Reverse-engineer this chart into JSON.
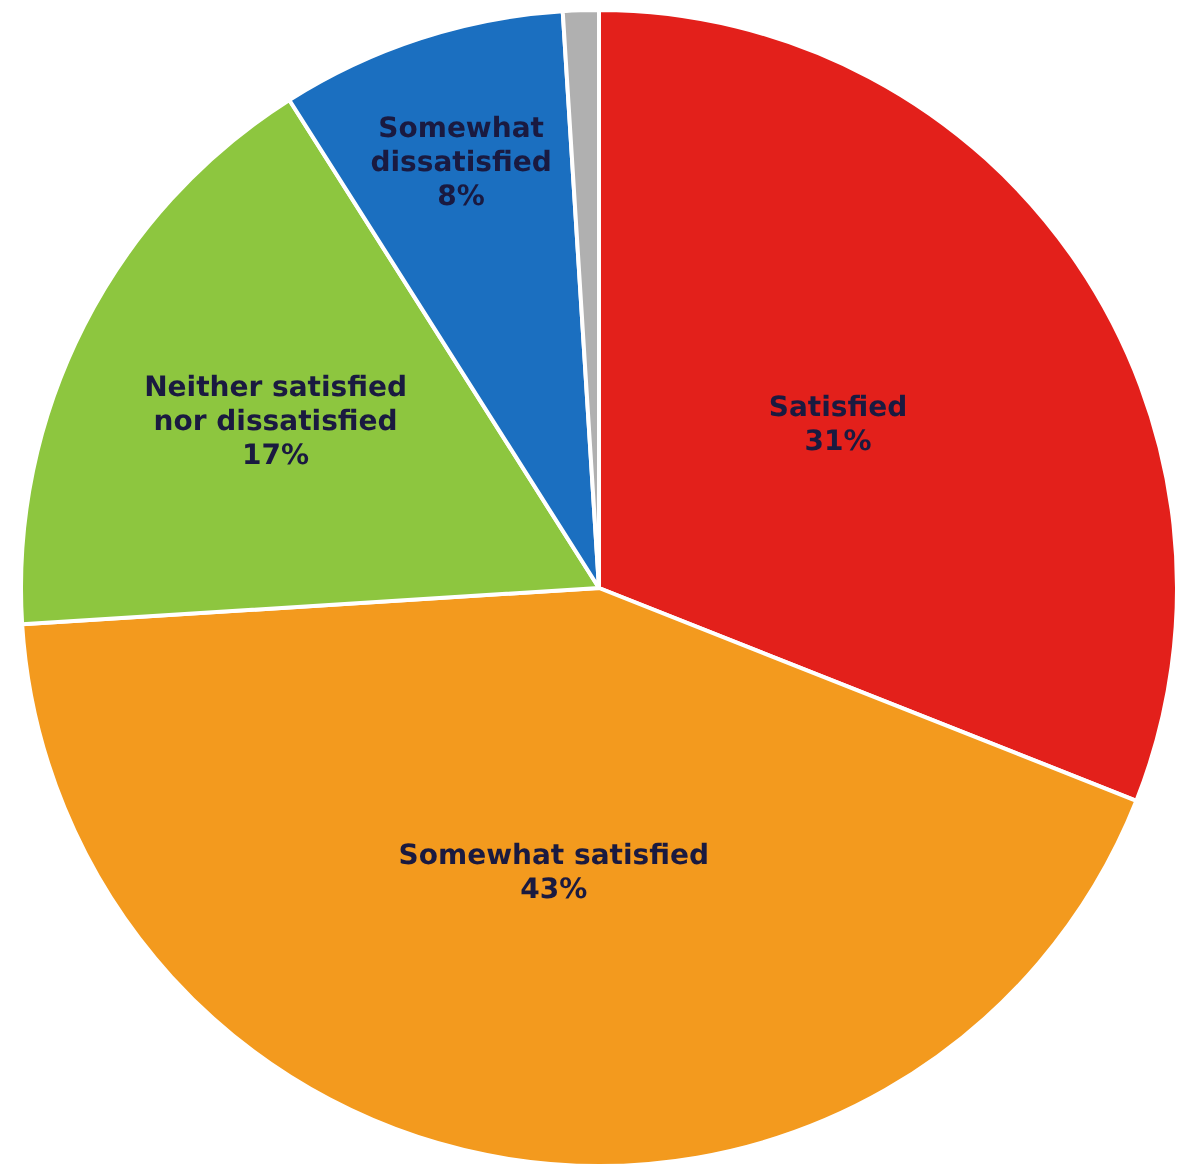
{
  "chart_data": {
    "type": "pie",
    "categories": [
      "Satisfied",
      "Somewhat satisfied",
      "Neither satisfied nor dissatisfied",
      "Somewhat dissatisfied",
      null
    ],
    "values": [
      31,
      43,
      17,
      8,
      1
    ],
    "colors": [
      "#e3201b",
      "#f39a1e",
      "#8dc63f",
      "#1b6fc0",
      "#b0b0b0"
    ],
    "value_labels": [
      "31%",
      "43%",
      "17%",
      "8%",
      null
    ],
    "legend": false
  }
}
